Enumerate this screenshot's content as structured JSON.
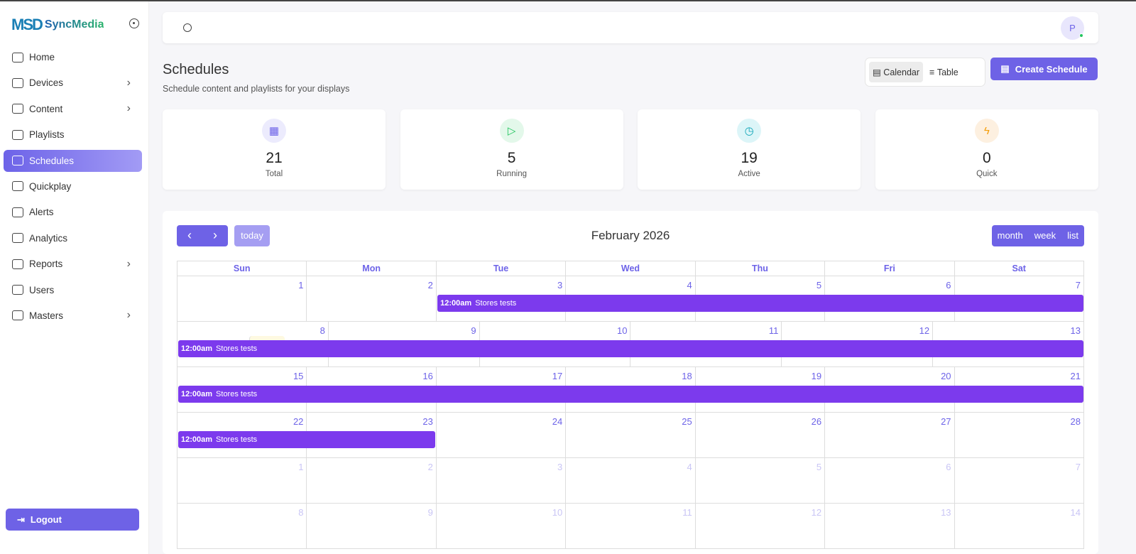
{
  "brand": {
    "logo_mark": "MSD",
    "name": "SyncMedia"
  },
  "sidebar": {
    "items": [
      {
        "label": "Home",
        "icon": "home-icon",
        "chevron": false
      },
      {
        "label": "Devices",
        "icon": "tv-icon",
        "chevron": true
      },
      {
        "label": "Content",
        "icon": "content-icon",
        "chevron": true
      },
      {
        "label": "Playlists",
        "icon": "playlist-icon",
        "chevron": false
      },
      {
        "label": "Schedules",
        "icon": "calendar-icon",
        "chevron": false,
        "active": true
      },
      {
        "label": "Quickplay",
        "icon": "play-icon",
        "chevron": false
      },
      {
        "label": "Alerts",
        "icon": "bell-icon",
        "chevron": false
      },
      {
        "label": "Analytics",
        "icon": "bar-chart-icon",
        "chevron": false
      },
      {
        "label": "Reports",
        "icon": "report-icon",
        "chevron": true
      },
      {
        "label": "Users",
        "icon": "users-icon",
        "chevron": false
      },
      {
        "label": "Masters",
        "icon": "gear-icon",
        "chevron": true
      }
    ],
    "logout": "Logout"
  },
  "topbar": {
    "avatar": "P"
  },
  "page": {
    "title": "Schedules",
    "subtitle": "Schedule content and playlists for your displays",
    "view_calendar": "Calendar",
    "view_table": "Table",
    "create": "Create Schedule"
  },
  "stats": [
    {
      "value": "21",
      "label": "Total",
      "color": "#6d63e8",
      "bg": "#ecebfd",
      "glyph": "▦"
    },
    {
      "value": "5",
      "label": "Running",
      "color": "#22c55e",
      "bg": "#e3f8ea",
      "glyph": "▷"
    },
    {
      "value": "19",
      "label": "Active",
      "color": "#0ea5b7",
      "bg": "#dcf5f8",
      "glyph": "◷"
    },
    {
      "value": "0",
      "label": "Quick",
      "color": "#f59e0b",
      "bg": "#fdf0e0",
      "glyph": "ϟ"
    }
  ],
  "calendar": {
    "title": "February 2026",
    "today": "today",
    "prev": "‹",
    "next": "›",
    "views": [
      "month",
      "week",
      "list"
    ],
    "weekdays": [
      "Sun",
      "Mon",
      "Tue",
      "Wed",
      "Thu",
      "Fri",
      "Sat"
    ],
    "weeks": [
      {
        "days": [
          "1",
          "2",
          "3",
          "4",
          "5",
          "6",
          "7"
        ],
        "other": [],
        "events": [
          {
            "start": 2,
            "end": 6,
            "time": "12:00am",
            "title": "Stores tests"
          }
        ]
      },
      {
        "days": [
          "8",
          "9",
          "10",
          "11",
          "12",
          "13",
          "14"
        ],
        "other": [],
        "today": 6,
        "events": [
          {
            "start": 0,
            "end": 6,
            "time": "12:00am",
            "title": "Stores tests"
          }
        ]
      },
      {
        "days": [
          "15",
          "16",
          "17",
          "18",
          "19",
          "20",
          "21"
        ],
        "other": [],
        "events": [
          {
            "start": 0,
            "end": 6,
            "time": "12:00am",
            "title": "Stores tests"
          }
        ]
      },
      {
        "days": [
          "22",
          "23",
          "24",
          "25",
          "26",
          "27",
          "28"
        ],
        "other": [],
        "events": [
          {
            "start": 0,
            "end": 1,
            "time": "12:00am",
            "title": "Stores tests"
          }
        ]
      },
      {
        "days": [
          "1",
          "2",
          "3",
          "4",
          "5",
          "6",
          "7"
        ],
        "other": [
          0,
          1,
          2,
          3,
          4,
          5,
          6
        ],
        "events": []
      },
      {
        "days": [
          "8",
          "9",
          "10",
          "11",
          "12",
          "13",
          "14"
        ],
        "other": [
          0,
          1,
          2,
          3,
          4,
          5,
          6
        ],
        "events": []
      }
    ]
  }
}
